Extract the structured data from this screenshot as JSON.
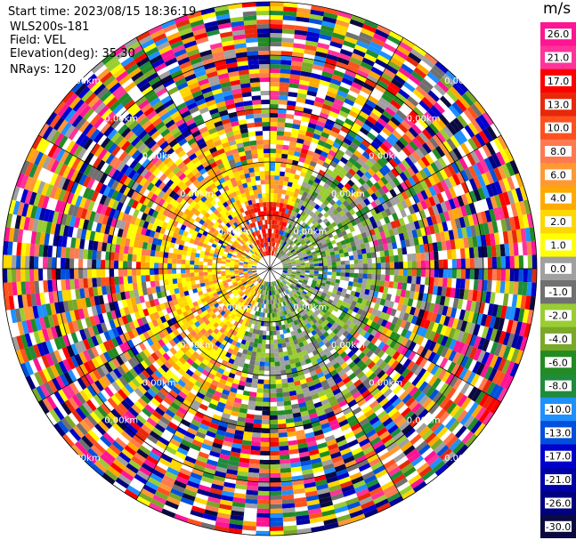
{
  "info": {
    "start_time": "Start time: 2023/08/15 18:36:19",
    "instrument": "WLS200s-181",
    "field": "Field: VEL",
    "elevation": "Elevation(deg): 35.30",
    "nrays": "NRays: 120"
  },
  "colorbar": {
    "unit": "m/s",
    "ticks": [
      "26.0",
      "21.0",
      "17.0",
      "13.0",
      "10.0",
      "8.0",
      "6.0",
      "4.0",
      "2.0",
      "1.0",
      "0.0",
      "-1.0",
      "-2.0",
      "-4.0",
      "-6.0",
      "-8.0",
      "-10.0",
      "-13.0",
      "-17.0",
      "-21.0",
      "-26.0",
      "-30.0"
    ],
    "colors": [
      "#ff1493",
      "#ff3399",
      "#ff0000",
      "#e8280a",
      "#ff5020",
      "#ff7a50",
      "#ff9933",
      "#ffaa00",
      "#ffd700",
      "#ffff00",
      "#a0a0a0",
      "#707070",
      "#9acd32",
      "#7aa828",
      "#228b22",
      "#1e8c3a",
      "#1e90ff",
      "#0050dd",
      "#0000cd",
      "#0000a8",
      "#000080",
      "#0a0a40"
    ]
  },
  "range_labels": [
    {
      "text": "0.00km",
      "r": 1,
      "angles": [
        -135,
        -45,
        45,
        135
      ]
    },
    {
      "text": "0.00km",
      "r": 2,
      "angles": [
        -135,
        -45,
        45,
        135
      ]
    },
    {
      "text": "0.00km",
      "r": 3,
      "angles": [
        -135,
        -45,
        45,
        135
      ]
    },
    {
      "text": "0.00km",
      "r": 4,
      "angles": [
        -135,
        -45,
        45,
        135
      ]
    },
    {
      "text": "0.00km",
      "r": 5,
      "angles": [
        -135,
        -45,
        45,
        135
      ]
    }
  ],
  "chart_data": {
    "type": "ppi",
    "field": "VEL",
    "unit": "m/s",
    "nrays": 120,
    "nrings": 5
  }
}
